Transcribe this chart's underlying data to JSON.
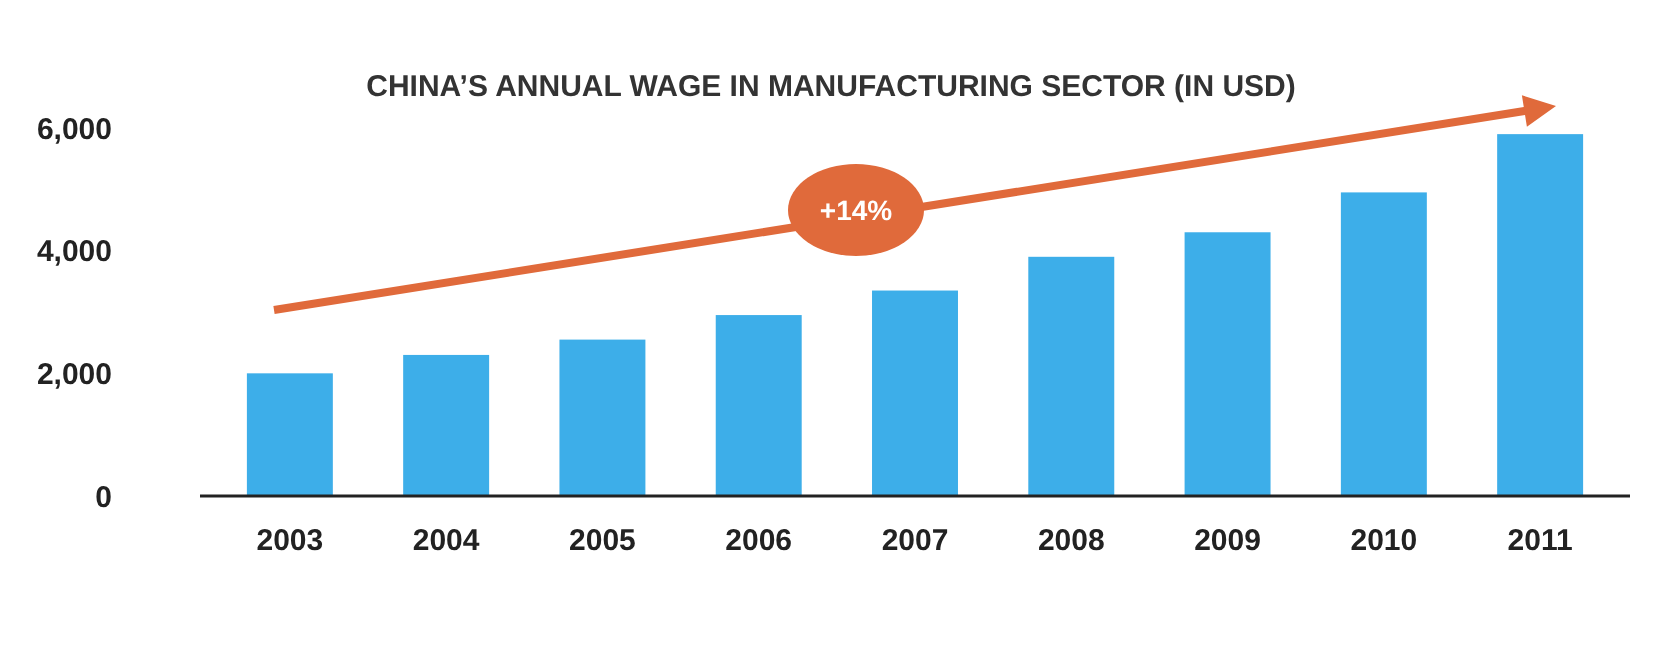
{
  "chart_data": {
    "type": "bar",
    "title": "CHINA’S ANNUAL WAGE IN MANUFACTURING SECTOR (IN USD)",
    "categories": [
      "2003",
      "2004",
      "2005",
      "2006",
      "2007",
      "2008",
      "2009",
      "2010",
      "2011"
    ],
    "values": [
      2000,
      2300,
      2550,
      2950,
      3350,
      3900,
      4300,
      4950,
      5900
    ],
    "color": "#3daee9",
    "ylim": [
      0,
      6000
    ],
    "yticks": [
      0,
      {
        "value": 2000,
        "label": "2,000"
      },
      {
        "value": 4000,
        "label": "4,000"
      },
      {
        "value": 6000,
        "label": "6,000"
      }
    ],
    "grid": false,
    "annotations": [
      "+14%"
    ]
  }
}
